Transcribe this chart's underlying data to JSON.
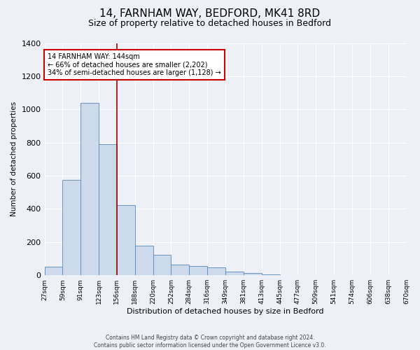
{
  "title": "14, FARNHAM WAY, BEDFORD, MK41 8RD",
  "subtitle": "Size of property relative to detached houses in Bedford",
  "xlabel": "Distribution of detached houses by size in Bedford",
  "ylabel": "Number of detached properties",
  "bar_values": [
    50,
    575,
    1040,
    790,
    425,
    178,
    125,
    65,
    55,
    48,
    22,
    15,
    5,
    0,
    0,
    0,
    0,
    0,
    0,
    0
  ],
  "bin_labels": [
    "27sqm",
    "59sqm",
    "91sqm",
    "123sqm",
    "156sqm",
    "188sqm",
    "220sqm",
    "252sqm",
    "284sqm",
    "316sqm",
    "349sqm",
    "381sqm",
    "413sqm",
    "445sqm",
    "477sqm",
    "509sqm",
    "541sqm",
    "574sqm",
    "606sqm",
    "638sqm",
    "670sqm"
  ],
  "bar_color": "#cddaec",
  "bar_edge_color": "#5588bb",
  "bar_width": 1.0,
  "property_line_x": 4,
  "property_line_color": "#990000",
  "annotation_title": "14 FARNHAM WAY: 144sqm",
  "annotation_line1": "← 66% of detached houses are smaller (2,202)",
  "annotation_line2": "34% of semi-detached houses are larger (1,128) →",
  "annotation_box_color": "#ffffff",
  "annotation_box_edge_color": "#cc0000",
  "ylim": [
    0,
    1400
  ],
  "yticks": [
    0,
    200,
    400,
    600,
    800,
    1000,
    1200,
    1400
  ],
  "footer_line1": "Contains HM Land Registry data © Crown copyright and database right 2024.",
  "footer_line2": "Contains public sector information licensed under the Open Government Licence v3.0.",
  "background_color": "#edf1f7",
  "plot_background_color": "#edf1f7",
  "grid_color": "#ffffff",
  "title_fontsize": 11,
  "subtitle_fontsize": 9
}
